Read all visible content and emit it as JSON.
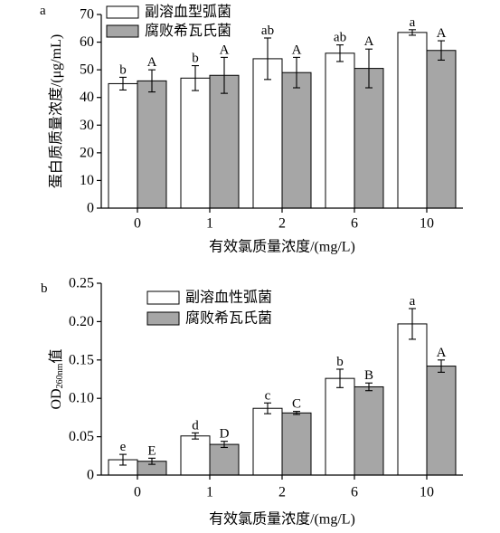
{
  "chart_data": [
    {
      "panel": "a",
      "type": "bar",
      "categories": [
        "0",
        "1",
        "2",
        "6",
        "10"
      ],
      "xlabel": "有效氯质量浓度/(mg/L)",
      "ylabel": "蛋白质质量浓度/(μg/mL)",
      "ylim": [
        0,
        70
      ],
      "yticks": [
        0,
        10,
        20,
        30,
        40,
        50,
        60,
        70
      ],
      "ytick_labels": [
        "0",
        "10",
        "20",
        "30",
        "40",
        "50",
        "60",
        "70"
      ],
      "grid": false,
      "legend_position": "top-left",
      "series": [
        {
          "name": "副溶血型弧菌",
          "color": "#ffffff",
          "values": [
            45,
            47,
            54,
            56,
            63.5
          ],
          "errors": [
            2.3,
            4.5,
            7.5,
            3,
            1
          ],
          "letters": [
            "b",
            "b",
            "ab",
            "ab",
            "a"
          ]
        },
        {
          "name": "腐败希瓦氏菌",
          "color": "#a6a6a6",
          "values": [
            46,
            48,
            49,
            50.5,
            57
          ],
          "errors": [
            4,
            6.5,
            5.5,
            7,
            3.5
          ],
          "letters": [
            "A",
            "A",
            "A",
            "A",
            "A"
          ]
        }
      ]
    },
    {
      "panel": "b",
      "type": "bar",
      "categories": [
        "0",
        "1",
        "2",
        "6",
        "10"
      ],
      "xlabel": "有效氯质量浓度/(mg/L)",
      "ylabel": "OD",
      "ylabel_sub": "260nm",
      "ylabel_tail": "值",
      "ylim": [
        0,
        0.25
      ],
      "yticks": [
        0,
        0.05,
        0.1,
        0.15,
        0.2,
        0.25
      ],
      "ytick_labels": [
        "0",
        "0.05",
        "0.10",
        "0.15",
        "0.20",
        "0.25"
      ],
      "grid": false,
      "legend_position": "top-left",
      "series": [
        {
          "name": "副溶血性弧菌",
          "color": "#ffffff",
          "values": [
            0.02,
            0.051,
            0.087,
            0.126,
            0.197
          ],
          "errors": [
            0.007,
            0.004,
            0.007,
            0.012,
            0.02
          ],
          "letters": [
            "e",
            "d",
            "c",
            "b",
            "a"
          ]
        },
        {
          "name": "腐败希瓦氏菌",
          "color": "#a6a6a6",
          "values": [
            0.018,
            0.04,
            0.081,
            0.115,
            0.142
          ],
          "errors": [
            0.004,
            0.004,
            0.002,
            0.005,
            0.008
          ],
          "letters": [
            "E",
            "D",
            "C",
            "B",
            "A"
          ]
        }
      ]
    }
  ]
}
